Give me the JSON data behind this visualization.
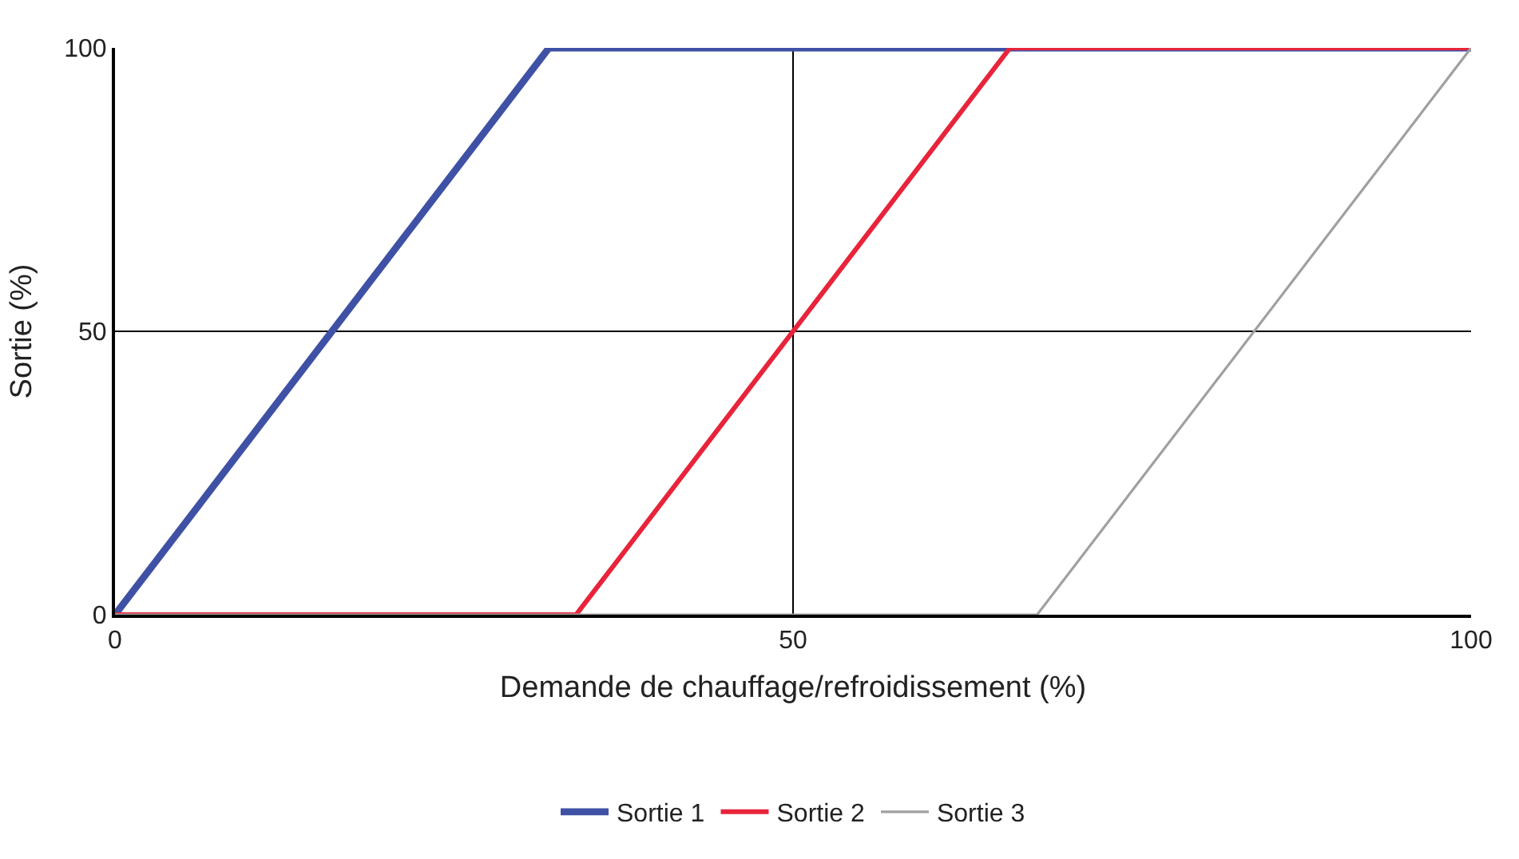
{
  "chart_data": {
    "type": "line",
    "xlabel": "Demande de chauffage/refroidissement (%)",
    "ylabel": "Sortie (%)",
    "xlim": [
      0,
      100
    ],
    "ylim": [
      0,
      100
    ],
    "xticks": [
      0,
      50,
      100
    ],
    "yticks": [
      0,
      50,
      100
    ],
    "grid": "y",
    "legend": "bottom",
    "marker": "none",
    "line_style": "solid",
    "ref_lines": [
      {
        "axis": "x",
        "value": 50,
        "label": null,
        "color": "#000000"
      }
    ],
    "series": [
      {
        "name": "Sortie 1",
        "color": "#3f51a5",
        "x": [
          0,
          32,
          100
        ],
        "values": [
          0,
          100,
          100
        ]
      },
      {
        "name": "Sortie 2",
        "color": "#e8243a",
        "x": [
          0,
          34,
          66,
          100
        ],
        "values": [
          0,
          0,
          100,
          100
        ]
      },
      {
        "name": "Sortie 3",
        "color": "#a0a0a0",
        "x": [
          0,
          68,
          100
        ],
        "values": [
          0,
          0,
          100
        ]
      }
    ]
  }
}
